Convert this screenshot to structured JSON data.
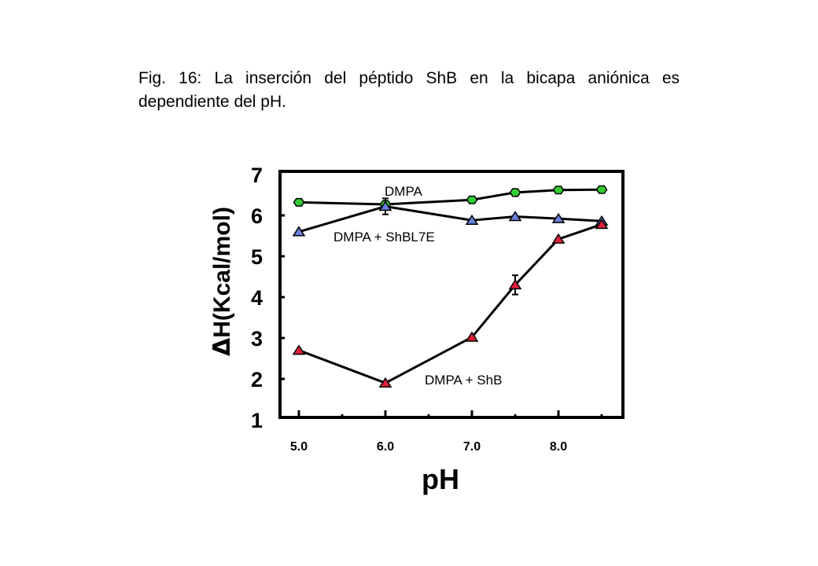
{
  "caption": "Fig. 16: La inserción del péptido ShB en la bicapa aniónica es dependiente del pH.",
  "chart_data": {
    "type": "line",
    "title": "",
    "xlabel": "pH",
    "ylabel_delta": "Δ",
    "ylabel": "H(Kcal/mol)",
    "x_ticks": [
      "5.0",
      "6.0",
      "7.0",
      "8.0"
    ],
    "x_tick_values": [
      5.0,
      6.0,
      7.0,
      8.0
    ],
    "xlim": [
      5.0,
      8.5
    ],
    "y_ticks": [
      "1",
      "2",
      "3",
      "4",
      "5",
      "6",
      "7"
    ],
    "y_tick_values": [
      1,
      2,
      3,
      4,
      5,
      6,
      7
    ],
    "ylim": [
      1,
      7
    ],
    "grid": false,
    "series": [
      {
        "name": "DMPA",
        "marker": "hexagon",
        "color": "#33cc33",
        "x": [
          5.0,
          6.0,
          7.0,
          7.5,
          8.0,
          8.5
        ],
        "y": [
          6.32,
          6.27,
          6.38,
          6.56,
          6.62,
          6.63
        ]
      },
      {
        "name": "DMPA + ShBL7E",
        "marker": "triangle",
        "color": "#6a7fd9",
        "x": [
          5.0,
          6.0,
          7.0,
          7.5,
          8.0,
          8.5
        ],
        "y": [
          5.6,
          6.22,
          5.88,
          5.97,
          5.92,
          5.86
        ],
        "err": [
          0,
          0.08,
          0,
          0,
          0,
          0
        ]
      },
      {
        "name": "DMPA + ShB",
        "marker": "triangle",
        "color": "#e0203a",
        "x": [
          5.0,
          6.0,
          7.0,
          7.5,
          8.0,
          8.5
        ],
        "y": [
          2.7,
          1.9,
          3.02,
          4.3,
          5.42,
          5.78
        ],
        "err": [
          0,
          0,
          0,
          0.12,
          0,
          0
        ]
      }
    ]
  }
}
